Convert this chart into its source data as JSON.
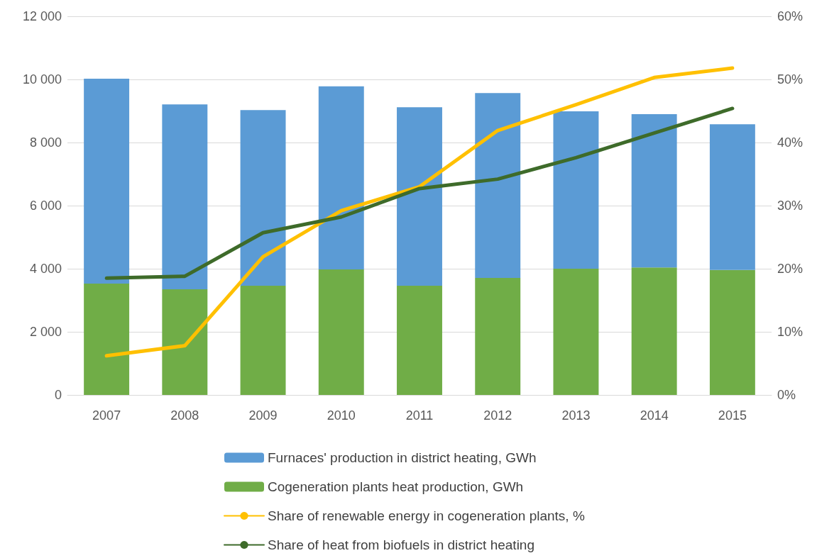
{
  "chart_data": {
    "type": "bar",
    "stacked": true,
    "categories": [
      "2007",
      "2008",
      "2009",
      "2010",
      "2011",
      "2012",
      "2013",
      "2014",
      "2015"
    ],
    "series": [
      {
        "name": "Cogeneration plants heat production, GWh",
        "color": "#70ad47",
        "values": [
          3530,
          3350,
          3460,
          3980,
          3460,
          3710,
          4000,
          4040,
          3960
        ]
      },
      {
        "name": "Furnaces' production in district heating, GWh",
        "color": "#5b9bd5",
        "values": [
          6490,
          5860,
          5570,
          5800,
          5660,
          5860,
          4990,
          4860,
          4620
        ]
      },
      {
        "name": "Share of renewable energy in cogeneration plants, %",
        "type": "line",
        "axis": "y2",
        "color": "#ffc000",
        "values": [
          6.2,
          7.8,
          21.9,
          29.2,
          33.0,
          41.9,
          46.0,
          50.3,
          51.8
        ]
      },
      {
        "name": "Share of heat from biofuels in district heating",
        "type": "line",
        "axis": "y2",
        "color": "#3e6b2a",
        "values": [
          18.5,
          18.8,
          25.7,
          28.2,
          32.7,
          34.2,
          37.6,
          41.5,
          45.4
        ]
      }
    ],
    "ylim": [
      0,
      12000
    ],
    "yticks": [
      {
        "value": 0,
        "label": "0"
      },
      {
        "value": 2000,
        "label": "2 000"
      },
      {
        "value": 4000,
        "label": "4 000"
      },
      {
        "value": 6000,
        "label": "6 000"
      },
      {
        "value": 8000,
        "label": "8 000"
      },
      {
        "value": 10000,
        "label": "10 000"
      },
      {
        "value": 12000,
        "label": "12 000"
      }
    ],
    "y2lim": [
      0,
      60
    ],
    "y2ticks": [
      {
        "value": 0,
        "label": "0%"
      },
      {
        "value": 10,
        "label": "10%"
      },
      {
        "value": 20,
        "label": "20%"
      },
      {
        "value": 30,
        "label": "30%"
      },
      {
        "value": 40,
        "label": "40%"
      },
      {
        "value": 50,
        "label": "50%"
      },
      {
        "value": 60,
        "label": "60%"
      }
    ],
    "grid": "y",
    "legend": "bottom",
    "marker": "none",
    "line_style": "solid"
  }
}
